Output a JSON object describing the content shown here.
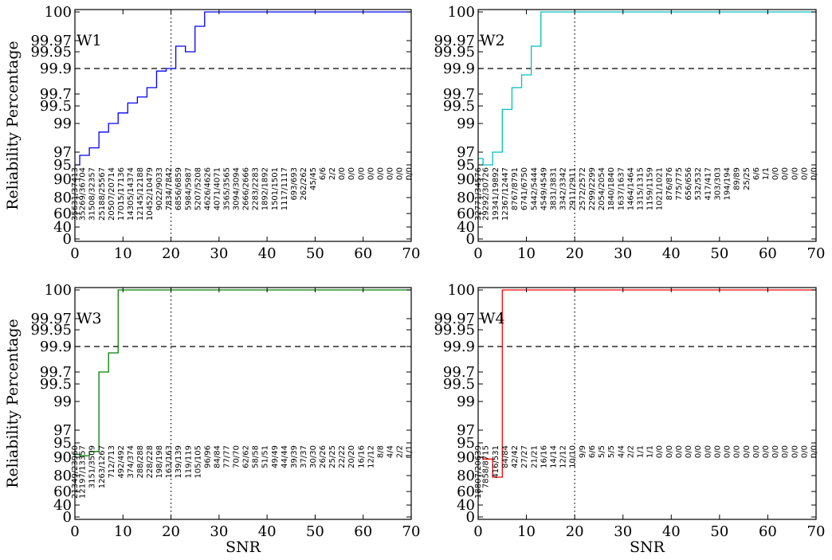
{
  "figure": {
    "ylabel": "Reliability Percentage",
    "xlabel": "SNR"
  },
  "chart_data": [
    {
      "type": "line",
      "title": "W1",
      "color": "#0000ff",
      "ylabel": "Reliability Percentage",
      "xlabel": "",
      "xlim": [
        0,
        70
      ],
      "x_ticks": [
        "0",
        "10",
        "20",
        "30",
        "40",
        "50",
        "60",
        "70"
      ],
      "y_ticks": [
        "0",
        "40",
        "60",
        "80",
        "90",
        "95",
        "97",
        "99",
        "99.5",
        "99.7",
        "99.9",
        "99.95",
        "99.97",
        "100"
      ],
      "reference_lines": {
        "horizontal": "99.9",
        "vertical": "20"
      },
      "step_x": [
        0,
        1,
        3,
        5,
        7,
        9,
        11,
        13,
        15,
        17,
        19,
        21,
        23,
        25,
        27,
        70
      ],
      "step_y": [
        95,
        96.5,
        97.3,
        98.4,
        99,
        99.3,
        99.55,
        99.65,
        99.75,
        99.88,
        99.9,
        99.96,
        99.95,
        99.985,
        100,
        100
      ],
      "annotation_x": [
        0,
        1.6,
        3.6,
        5.6,
        7.6,
        9.6,
        11.6,
        13.6,
        15.6,
        17.6,
        19.6,
        21.6,
        23.6,
        25.6,
        27.6,
        29.6,
        31.6,
        33.6,
        35.6,
        37.6,
        39.6,
        41.6,
        43.6,
        45.6,
        47.6,
        49.6,
        51.6,
        53.6,
        55.6,
        57.6,
        59.6,
        61.6,
        63.6,
        65.6,
        67.6,
        69.6
      ],
      "annotations": [
        "35631/37413",
        "35269/36704",
        "31508/32357",
        "25188/25567",
        "20507/20714",
        "17015/17136",
        "14305/14374",
        "12145/12188",
        "10452/10479",
        "9022/9033",
        "7834/7842",
        "6856/6859",
        "5984/5987",
        "5207/5208",
        "4626/4626",
        "4071/4071",
        "3565/3565",
        "3094/3094",
        "2666/2666",
        "2283/2283",
        "1892/1892",
        "1501/1501",
        "1117/1117",
        "693/693",
        "262/262",
        "45/45",
        "6/6",
        "2/2",
        "0/0",
        "0/0",
        "0/0",
        "0/0",
        "0/0",
        "0/0",
        "0/0",
        "0/0"
      ]
    },
    {
      "type": "line",
      "title": "W2",
      "color": "#00bfbf",
      "ylabel": "",
      "xlabel": "",
      "xlim": [
        0,
        70
      ],
      "x_ticks": [
        "0",
        "10",
        "20",
        "30",
        "40",
        "50",
        "60",
        "70"
      ],
      "y_ticks": [
        "0",
        "40",
        "60",
        "80",
        "90",
        "95",
        "97",
        "99",
        "99.5",
        "99.7",
        "99.9",
        "99.95",
        "99.97",
        "100"
      ],
      "reference_lines": {
        "horizontal": "99.9",
        "vertical": "20"
      },
      "step_x": [
        0,
        1,
        3,
        5,
        7,
        9,
        11,
        13,
        70
      ],
      "step_y": [
        96,
        95,
        97,
        99.4,
        99.75,
        99.85,
        99.96,
        100,
        100
      ],
      "annotation_x": [
        0,
        1.6,
        3.6,
        5.6,
        7.6,
        9.6,
        11.6,
        13.6,
        15.6,
        17.6,
        19.6,
        21.6,
        23.6,
        25.6,
        27.6,
        29.6,
        31.6,
        33.6,
        35.6,
        37.6,
        39.6,
        41.6,
        43.6,
        45.6,
        47.6,
        49.6,
        51.6,
        53.6,
        55.6,
        57.6,
        59.6,
        61.6,
        63.6,
        65.6,
        67.6,
        69.6
      ],
      "annotations": [
        "32771/34576",
        "29292/30726",
        "19341/19892",
        "12367/12447",
        "8767/8791",
        "6741/6750",
        "5442/5444",
        "4549/4549",
        "3831/3831",
        "3342/3342",
        "2911/2911",
        "2572/2572",
        "2299/2299",
        "2054/2054",
        "1840/1840",
        "1637/1637",
        "1464/1464",
        "1315/1315",
        "1159/1159",
        "1021/1021",
        "876/876",
        "775/775",
        "656/656",
        "532/532",
        "417/417",
        "303/303",
        "194/194",
        "89/89",
        "25/25",
        "6/6",
        "1/1",
        "0/0",
        "0/0",
        "0/0",
        "0/0",
        "0/0"
      ]
    },
    {
      "type": "line",
      "title": "W3",
      "color": "#008000",
      "ylabel": "Reliability Percentage",
      "xlabel": "SNR",
      "xlim": [
        0,
        70
      ],
      "x_ticks": [
        "0",
        "10",
        "20",
        "30",
        "40",
        "50",
        "60",
        "70"
      ],
      "y_ticks": [
        "0",
        "40",
        "60",
        "80",
        "90",
        "95",
        "97",
        "99",
        "99.5",
        "99.7",
        "99.9",
        "99.95",
        "99.97",
        "100"
      ],
      "reference_lines": {
        "horizontal": "99.9",
        "vertical": "20"
      },
      "step_x": [
        0,
        1,
        3,
        5,
        7,
        9,
        70
      ],
      "step_y": [
        91,
        90.5,
        92,
        99.7,
        99.85,
        100,
        100
      ],
      "annotation_x": [
        0,
        1.6,
        3.6,
        5.6,
        7.6,
        9.6,
        11.6,
        13.6,
        15.6,
        17.6,
        19.6,
        21.6,
        23.6,
        25.6,
        27.6,
        29.6,
        31.6,
        33.6,
        35.6,
        37.6,
        39.6,
        41.6,
        43.6,
        45.6,
        47.6,
        49.6,
        51.6,
        53.6,
        55.6,
        57.6,
        59.6,
        61.6,
        63.6,
        65.6,
        67.6,
        69.6
      ],
      "annotations": [
        "21349/23960",
        "12197/13357",
        "3151/3509",
        "1263/1267",
        "712/713",
        "492/492",
        "374/374",
        "288/288",
        "228/228",
        "198/198",
        "163/163",
        "139/139",
        "119/119",
        "105/105",
        "96/96",
        "84/84",
        "77/77",
        "70/70",
        "62/62",
        "58/58",
        "51/51",
        "49/49",
        "44/44",
        "39/39",
        "37/37",
        "30/30",
        "26/26",
        "25/25",
        "22/22",
        "20/20",
        "16/16",
        "12/12",
        "8/8",
        "4/4",
        "2/2",
        "1/1"
      ]
    },
    {
      "type": "line",
      "title": "W4",
      "color": "#ff0000",
      "ylabel": "",
      "xlabel": "SNR",
      "xlim": [
        0,
        70
      ],
      "x_ticks": [
        "0",
        "10",
        "20",
        "30",
        "40",
        "50",
        "60",
        "70"
      ],
      "y_ticks": [
        "0",
        "40",
        "60",
        "80",
        "90",
        "95",
        "97",
        "99",
        "99.5",
        "99.7",
        "99.9",
        "99.95",
        "99.97",
        "100"
      ],
      "reference_lines": {
        "horizontal": "99.9",
        "vertical": "20"
      },
      "step_x": [
        0,
        1,
        3,
        5,
        70
      ],
      "step_y": [
        90,
        89,
        78,
        100,
        100
      ],
      "annotation_x": [
        0,
        1.6,
        3.6,
        5.6,
        7.6,
        9.6,
        11.6,
        13.6,
        15.6,
        17.6,
        19.6,
        21.6,
        23.6,
        25.6,
        27.6,
        29.6,
        31.6,
        33.6,
        35.6,
        37.6,
        39.6,
        41.6,
        43.6,
        45.6,
        47.6,
        49.6,
        51.6,
        53.6,
        55.6,
        57.6,
        59.6,
        61.6,
        63.6,
        65.6,
        67.6,
        69.6
      ],
      "annotations": [
        "18807/20639",
        "7858/8715",
        "416/531",
        "84/84",
        "42/42",
        "27/27",
        "21/21",
        "16/16",
        "14/14",
        "12/12",
        "10/10",
        "9/9",
        "6/6",
        "5/5",
        "5/5",
        "4/4",
        "2/2",
        "1/1",
        "1/1",
        "0/0",
        "0/0",
        "0/0",
        "0/0",
        "0/0",
        "0/0",
        "0/0",
        "0/0",
        "0/0",
        "0/0",
        "0/0",
        "0/0",
        "0/0",
        "0/0",
        "0/0",
        "0/0",
        "0/0"
      ]
    }
  ]
}
